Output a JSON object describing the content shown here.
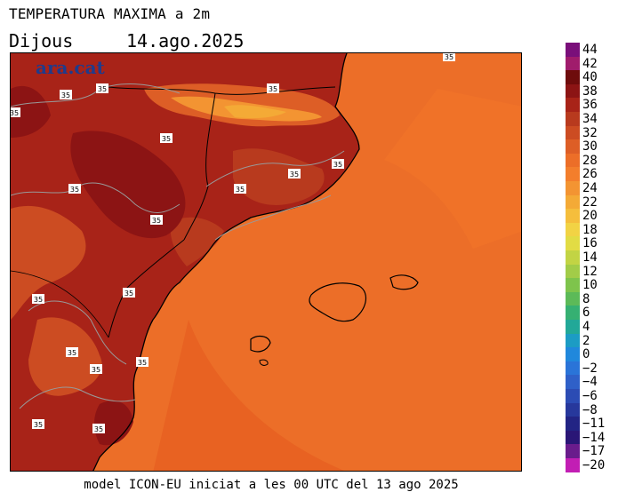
{
  "header": {
    "title": "TEMPERATURA MAXIMA a 2m",
    "day": "Dijous",
    "date": "14.ago.2025"
  },
  "footer": {
    "text": "model ICON-EU iniciat a les 00 UTC del 13 ago 2025"
  },
  "logo": {
    "text": "ara.cat"
  },
  "isotherm_value": "35",
  "legend": {
    "labels": [
      "44",
      "42",
      "40",
      "38",
      "36",
      "34",
      "32",
      "30",
      "28",
      "26",
      "24",
      "22",
      "20",
      "18",
      "16",
      "14",
      "12",
      "10",
      "8",
      "6",
      "4",
      "2",
      "0",
      "−2",
      "−4",
      "−6",
      "−8",
      "−11",
      "−14",
      "−17",
      "−20"
    ],
    "colors": [
      "#7a0f7a",
      "#a01c6c",
      "#6e0c0c",
      "#8c1414",
      "#a82318",
      "#b83a1e",
      "#cc4c22",
      "#dd5e26",
      "#ec6e28",
      "#f37e2c",
      "#f39432",
      "#f4aa36",
      "#f5be3c",
      "#f2d344",
      "#e2dc44",
      "#c2d444",
      "#a2cc48",
      "#7ec44c",
      "#5cba58",
      "#36b072",
      "#22a898",
      "#1c9cc4",
      "#2088dc",
      "#2a74d8",
      "#2f60c8",
      "#2c4cb4",
      "#27389c",
      "#222484",
      "#2a1676",
      "#6a1c8c",
      "#c21eb4"
    ]
  },
  "colors": {
    "sea": "#ec6e28",
    "sea_deep": "#e86222",
    "land_hot": "#a82318",
    "land_very_hot": "#7c0e0e",
    "land_warm": "#cc4c22",
    "mountain_cool": "#f4aa36",
    "mountain_mild": "#f39432",
    "coast": "#000000",
    "border": "#888888"
  }
}
